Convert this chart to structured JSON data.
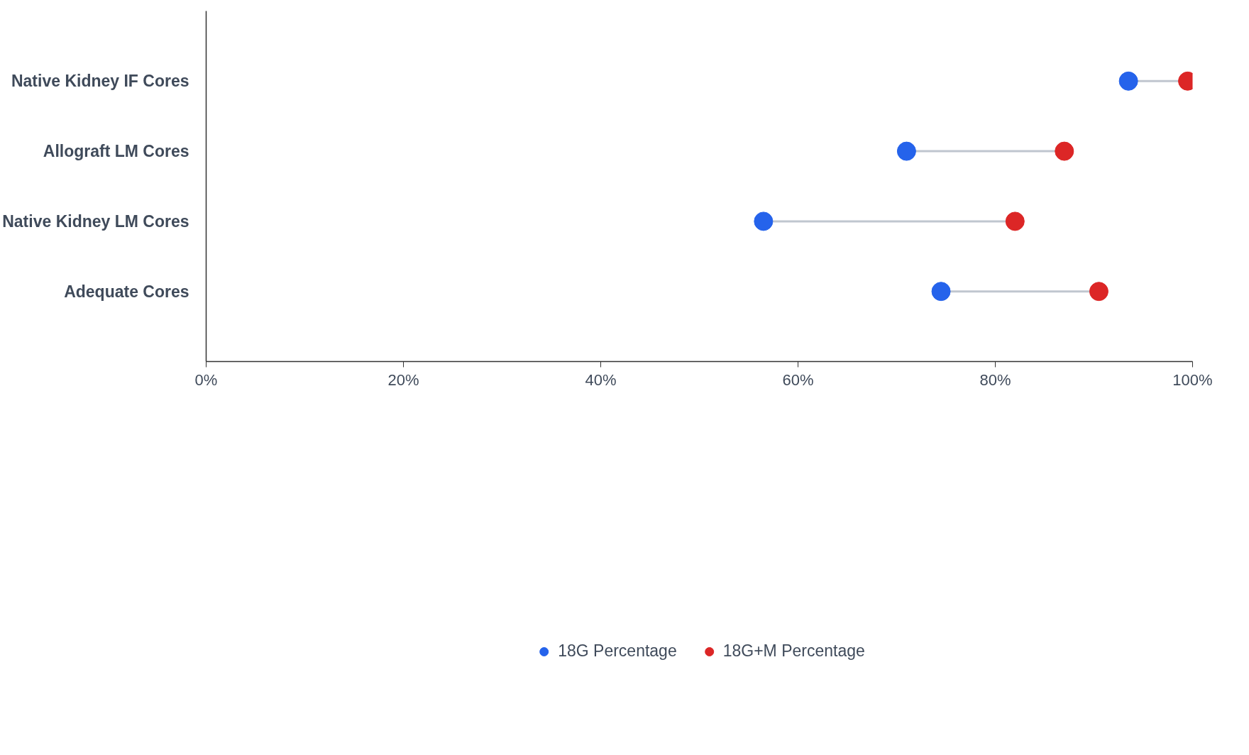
{
  "chart_data": {
    "type": "scatter",
    "orientation": "horizontal",
    "categories": [
      "Native Kidney IF Cores",
      "Allograft LM Cores",
      "Native Kidney LM Cores",
      "Adequate Cores"
    ],
    "series": [
      {
        "name": "18G Percentage",
        "color": "#2563eb",
        "values": [
          93.5,
          71,
          56.5,
          74.5
        ]
      },
      {
        "name": "18G+M Percentage",
        "color": "#dc2626",
        "values": [
          99.5,
          87,
          82,
          90.5
        ]
      }
    ],
    "xlim": [
      0,
      100
    ],
    "xticks": [
      {
        "value": 0,
        "label": "0%"
      },
      {
        "value": 20,
        "label": "20%"
      },
      {
        "value": 40,
        "label": "40%"
      },
      {
        "value": 60,
        "label": "60%"
      },
      {
        "value": 80,
        "label": "80%"
      },
      {
        "value": 100,
        "label": "100%"
      }
    ],
    "marker": "circle",
    "grid": false,
    "legend": "bottom"
  }
}
